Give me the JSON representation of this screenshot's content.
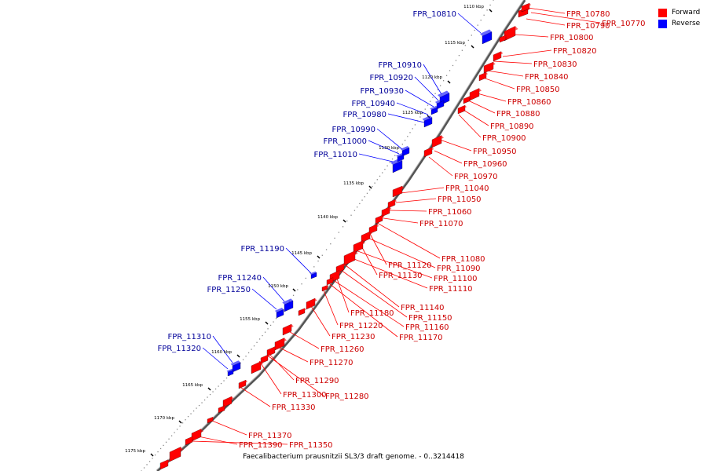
{
  "legend": [
    {
      "label": "Forward",
      "color": "#ff0000"
    },
    {
      "label": "Reverse",
      "color": "#0000ff"
    }
  ],
  "colors": {
    "forward": "#ff0000",
    "reverse": "#0000ff",
    "forward_label": "#cc0000",
    "reverse_label": "#000099",
    "backbone": "#777777"
  },
  "caption": "Faecalibacterium prausnitzii SL3/3 draft genome. - 0..3214418",
  "kbp_ticks": [
    "1110 kbp",
    "1115 kbp",
    "1120 kbp",
    "1125 kbp",
    "1130 kbp",
    "1135 kbp",
    "1140 kbp",
    "1145 kbp",
    "1150 kbp",
    "1155 kbp",
    "1160 kbp",
    "1165 kbp",
    "1170 kbp",
    "1175 kbp"
  ],
  "forward_genes": [
    "FPR_10780",
    "FPR_10790",
    "FPR_10770",
    "FPR_10800",
    "FPR_10820",
    "FPR_10830",
    "FPR_10840",
    "FPR_10850",
    "FPR_10860",
    "FPR_10880",
    "FPR_10890",
    "FPR_10900",
    "FPR_10950",
    "FPR_10960",
    "FPR_10970",
    "FPR_11040",
    "FPR_11050",
    "FPR_11060",
    "FPR_11070",
    "FPR_11080",
    "FPR_11120",
    "FPR_11090",
    "FPR_11130",
    "FPR_11100",
    "FPR_11110",
    "FPR_11140",
    "FPR_11180",
    "FPR_11150",
    "FPR_11220",
    "FPR_11160",
    "FPR_11230",
    "FPR_11170",
    "FPR_11260",
    "FPR_11270",
    "FPR_11290",
    "FPR_11300",
    "FPR_11280",
    "FPR_11330",
    "FPR_11370",
    "FPR_11390",
    "FPR_11350"
  ],
  "reverse_genes": [
    "FPR_10810",
    "FPR_10910",
    "FPR_10920",
    "FPR_10930",
    "FPR_10940",
    "FPR_10980",
    "FPR_10990",
    "FPR_11000",
    "FPR_11010",
    "FPR_11190",
    "FPR_11240",
    "FPR_11250",
    "FPR_11310",
    "FPR_11320"
  ]
}
